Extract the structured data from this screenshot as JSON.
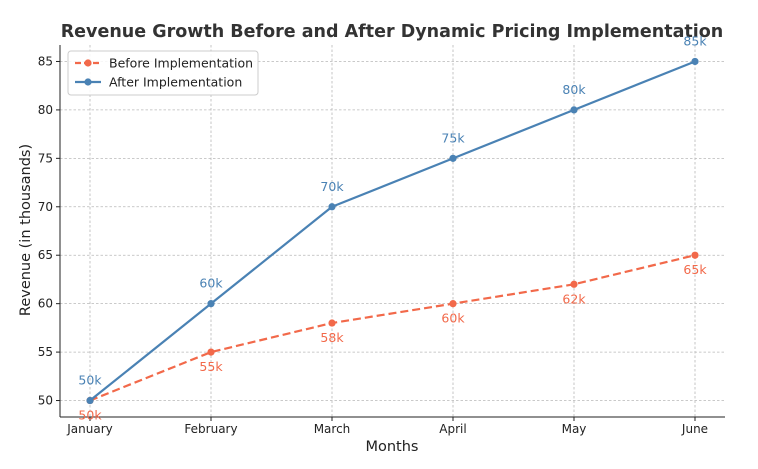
{
  "chart_data": {
    "type": "line",
    "title": "Revenue Growth Before and After Dynamic Pricing Implementation",
    "xlabel": "Months",
    "ylabel": "Revenue (in thousands)",
    "categories": [
      "January",
      "February",
      "March",
      "April",
      "May",
      "June"
    ],
    "ylim": [
      48.3,
      86.7
    ],
    "yticks": [
      50,
      55,
      60,
      65,
      70,
      75,
      80,
      85
    ],
    "grid": true,
    "legend_position": "top-left",
    "series": [
      {
        "name": "Before Implementation",
        "values": [
          50,
          55,
          58,
          60,
          62,
          65
        ],
        "labels": [
          "50k",
          "55k",
          "58k",
          "60k",
          "62k",
          "65k"
        ],
        "color": "#f2694a",
        "line_style": "dashed",
        "label_position": "below"
      },
      {
        "name": "After Implementation",
        "values": [
          50,
          60,
          70,
          75,
          80,
          85
        ],
        "labels": [
          "50k",
          "60k",
          "70k",
          "75k",
          "80k",
          "85k"
        ],
        "color": "#4a82b4",
        "line_style": "solid",
        "label_position": "above"
      }
    ]
  }
}
